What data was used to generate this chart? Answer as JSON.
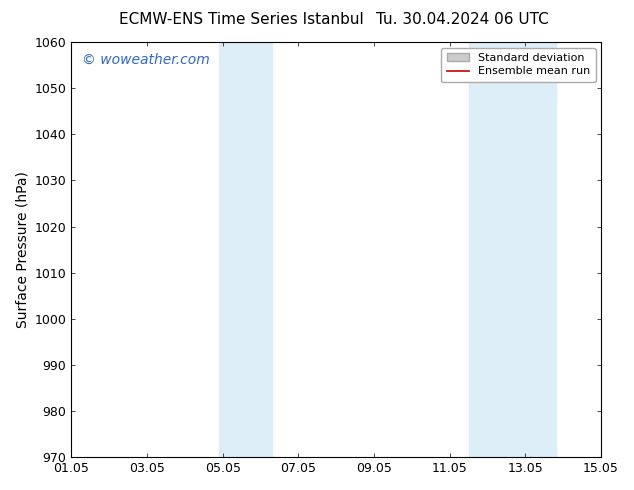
{
  "title": "ECMW-ENS Time Series Istanbul",
  "title_right": "Tu. 30.04.2024 06 UTC",
  "ylabel": "Surface Pressure (hPa)",
  "xlabel": "",
  "ylim": [
    970,
    1060
  ],
  "yticks": [
    970,
    980,
    990,
    1000,
    1010,
    1020,
    1030,
    1040,
    1050,
    1060
  ],
  "xtick_labels": [
    "01.05",
    "03.05",
    "05.05",
    "07.05",
    "09.05",
    "11.05",
    "13.05",
    "15.05"
  ],
  "xtick_positions": [
    0,
    2,
    4,
    6,
    8,
    10,
    12,
    14
  ],
  "x_total_days": 14,
  "shaded_bands": [
    {
      "x_start": 3.9,
      "x_end": 5.3
    },
    {
      "x_start": 10.5,
      "x_end": 12.8
    }
  ],
  "shade_color": "#ddeef8",
  "background_color": "#ffffff",
  "watermark_text": "© woweather.com",
  "watermark_color": "#3366cc",
  "legend_entries": [
    {
      "label": "Standard deviation",
      "color": "#cccccc",
      "type": "patch"
    },
    {
      "label": "Ensemble mean run",
      "color": "#cc0000",
      "type": "line"
    }
  ],
  "title_fontsize": 11,
  "axis_fontsize": 10,
  "tick_fontsize": 9,
  "watermark_fontsize": 10
}
